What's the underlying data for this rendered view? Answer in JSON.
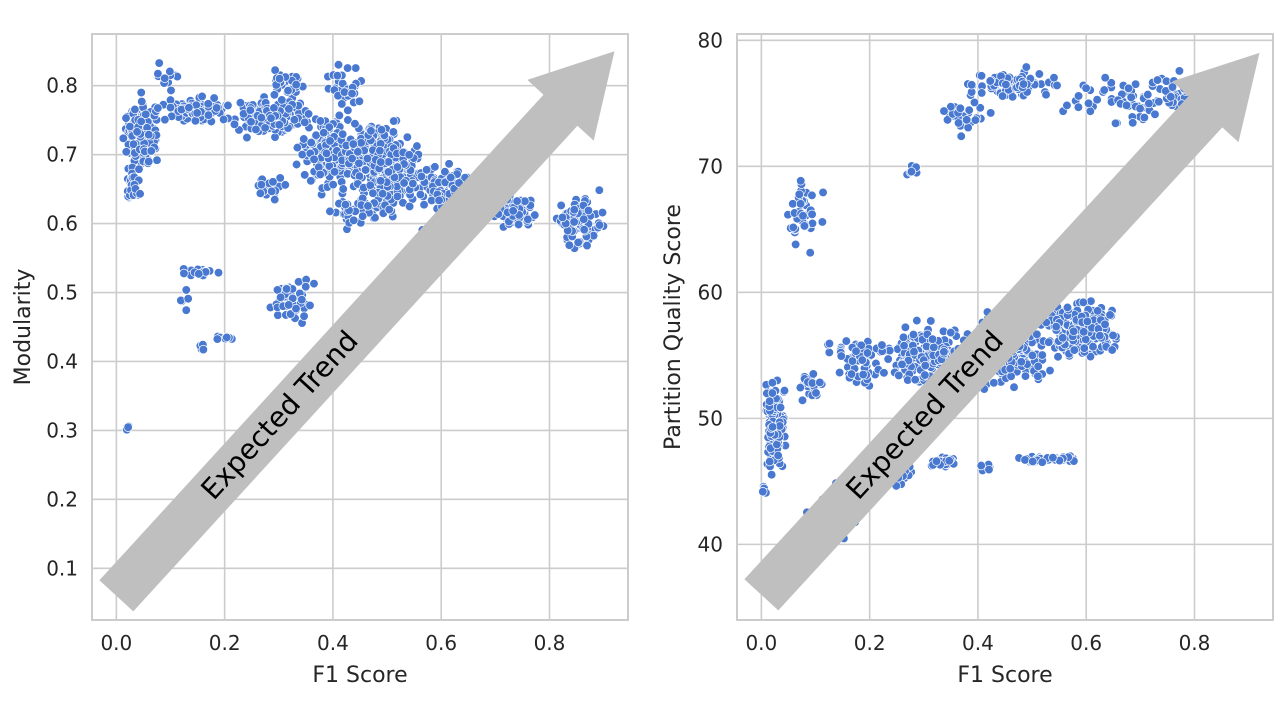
{
  "chart_data": [
    {
      "type": "scatter",
      "xlabel": "F1 Score",
      "ylabel": "Modularity",
      "xlim": [
        -0.045,
        0.945
      ],
      "ylim": [
        0.025,
        0.875
      ],
      "xticks": [
        0.0,
        0.2,
        0.4,
        0.6,
        0.8
      ],
      "yticks": [
        0.1,
        0.2,
        0.3,
        0.4,
        0.5,
        0.6,
        0.7,
        0.8
      ],
      "grid": true,
      "annotation": {
        "text": "Expected Trend",
        "from": [
          0.0,
          0.06
        ],
        "to": [
          0.92,
          0.85
        ]
      },
      "colors": {
        "point": "#4878d0",
        "point_edge": "#ffffff",
        "arrow": "#bfbfbf",
        "grid": "#cccccc"
      },
      "clusters": [
        {
          "x": [
            0.0,
            0.09
          ],
          "y": [
            0.66,
            0.8
          ],
          "n": 160
        },
        {
          "x": [
            0.01,
            0.05
          ],
          "y": [
            0.62,
            0.7
          ],
          "n": 40
        },
        {
          "x": [
            0.05,
            0.24
          ],
          "y": [
            0.74,
            0.79
          ],
          "n": 90
        },
        {
          "x": [
            0.07,
            0.13
          ],
          "y": [
            0.78,
            0.85
          ],
          "n": 12
        },
        {
          "x": [
            0.2,
            0.38
          ],
          "y": [
            0.72,
            0.79
          ],
          "n": 170
        },
        {
          "x": [
            0.27,
            0.36
          ],
          "y": [
            0.77,
            0.83
          ],
          "n": 30
        },
        {
          "x": [
            0.36,
            0.48
          ],
          "y": [
            0.76,
            0.84
          ],
          "n": 35
        },
        {
          "x": [
            0.32,
            0.46
          ],
          "y": [
            0.63,
            0.78
          ],
          "n": 160
        },
        {
          "x": [
            0.4,
            0.55
          ],
          "y": [
            0.64,
            0.76
          ],
          "n": 260
        },
        {
          "x": [
            0.44,
            0.6
          ],
          "y": [
            0.6,
            0.73
          ],
          "n": 170
        },
        {
          "x": [
            0.38,
            0.5
          ],
          "y": [
            0.58,
            0.66
          ],
          "n": 40
        },
        {
          "x": [
            0.55,
            0.68
          ],
          "y": [
            0.58,
            0.7
          ],
          "n": 150
        },
        {
          "x": [
            0.24,
            0.32
          ],
          "y": [
            0.63,
            0.68
          ],
          "n": 20
        },
        {
          "x": [
            0.68,
            0.79
          ],
          "y": [
            0.58,
            0.65
          ],
          "n": 70
        },
        {
          "x": [
            0.79,
            0.92
          ],
          "y": [
            0.55,
            0.66
          ],
          "n": 90
        },
        {
          "x": [
            0.11,
            0.19
          ],
          "y": [
            0.52,
            0.54
          ],
          "n": 18
        },
        {
          "x": [
            0.11,
            0.14
          ],
          "y": [
            0.47,
            0.51
          ],
          "n": 6
        },
        {
          "x": [
            0.15,
            0.17
          ],
          "y": [
            0.41,
            0.43
          ],
          "n": 6
        },
        {
          "x": [
            0.18,
            0.23
          ],
          "y": [
            0.43,
            0.44
          ],
          "n": 10
        },
        {
          "x": [
            0.27,
            0.38
          ],
          "y": [
            0.45,
            0.53
          ],
          "n": 50
        },
        {
          "x": [
            0.015,
            0.025
          ],
          "y": [
            0.298,
            0.31
          ],
          "n": 4
        },
        {
          "x": [
            0.0,
            0.01
          ],
          "y": [
            0.075,
            0.095
          ],
          "n": 4
        }
      ]
    },
    {
      "type": "scatter",
      "xlabel": "F1 Score",
      "ylabel": "Partition Quality Score",
      "xlim": [
        -0.045,
        0.945
      ],
      "ylim": [
        34,
        80.5
      ],
      "xticks": [
        0.0,
        0.2,
        0.4,
        0.6,
        0.8
      ],
      "yticks": [
        40,
        50,
        60,
        70,
        80
      ],
      "grid": true,
      "annotation": {
        "text": "Expected Trend",
        "from": [
          0.0,
          36.0
        ],
        "to": [
          0.92,
          79.0
        ]
      },
      "colors": {
        "point": "#4878d0",
        "point_edge": "#ffffff",
        "arrow": "#bfbfbf",
        "grid": "#cccccc"
      },
      "clusters": [
        {
          "x": [
            0.0,
            0.05
          ],
          "y": [
            45,
            54
          ],
          "n": 140
        },
        {
          "x": [
            0.0,
            0.01
          ],
          "y": [
            43.5,
            45
          ],
          "n": 6
        },
        {
          "x": [
            0.0,
            0.02
          ],
          "y": [
            36,
            40
          ],
          "n": 4
        },
        {
          "x": [
            0.05,
            0.13
          ],
          "y": [
            51,
            54
          ],
          "n": 25
        },
        {
          "x": [
            0.1,
            0.25
          ],
          "y": [
            52,
            57
          ],
          "n": 60
        },
        {
          "x": [
            0.2,
            0.4
          ],
          "y": [
            52,
            58
          ],
          "n": 180
        },
        {
          "x": [
            0.35,
            0.55
          ],
          "y": [
            52,
            59
          ],
          "n": 300
        },
        {
          "x": [
            0.5,
            0.68
          ],
          "y": [
            54,
            60
          ],
          "n": 260
        },
        {
          "x": [
            0.05,
            0.2
          ],
          "y": [
            38,
            46
          ],
          "n": 25
        },
        {
          "x": [
            0.2,
            0.3
          ],
          "y": [
            44,
            47
          ],
          "n": 30
        },
        {
          "x": [
            0.3,
            0.38
          ],
          "y": [
            46,
            47
          ],
          "n": 30
        },
        {
          "x": [
            0.38,
            0.45
          ],
          "y": [
            45.5,
            46.5
          ],
          "n": 8
        },
        {
          "x": [
            0.46,
            0.6
          ],
          "y": [
            46.4,
            47.1
          ],
          "n": 40
        },
        {
          "x": [
            0.04,
            0.12
          ],
          "y": [
            62.5,
            70
          ],
          "n": 40
        },
        {
          "x": [
            0.26,
            0.3
          ],
          "y": [
            69,
            70.5
          ],
          "n": 6
        },
        {
          "x": [
            0.32,
            0.44
          ],
          "y": [
            72,
            76
          ],
          "n": 30
        },
        {
          "x": [
            0.36,
            0.58
          ],
          "y": [
            75,
            78
          ],
          "n": 80
        },
        {
          "x": [
            0.52,
            0.92
          ],
          "y": [
            72.5,
            78.3
          ],
          "n": 120
        }
      ]
    }
  ]
}
